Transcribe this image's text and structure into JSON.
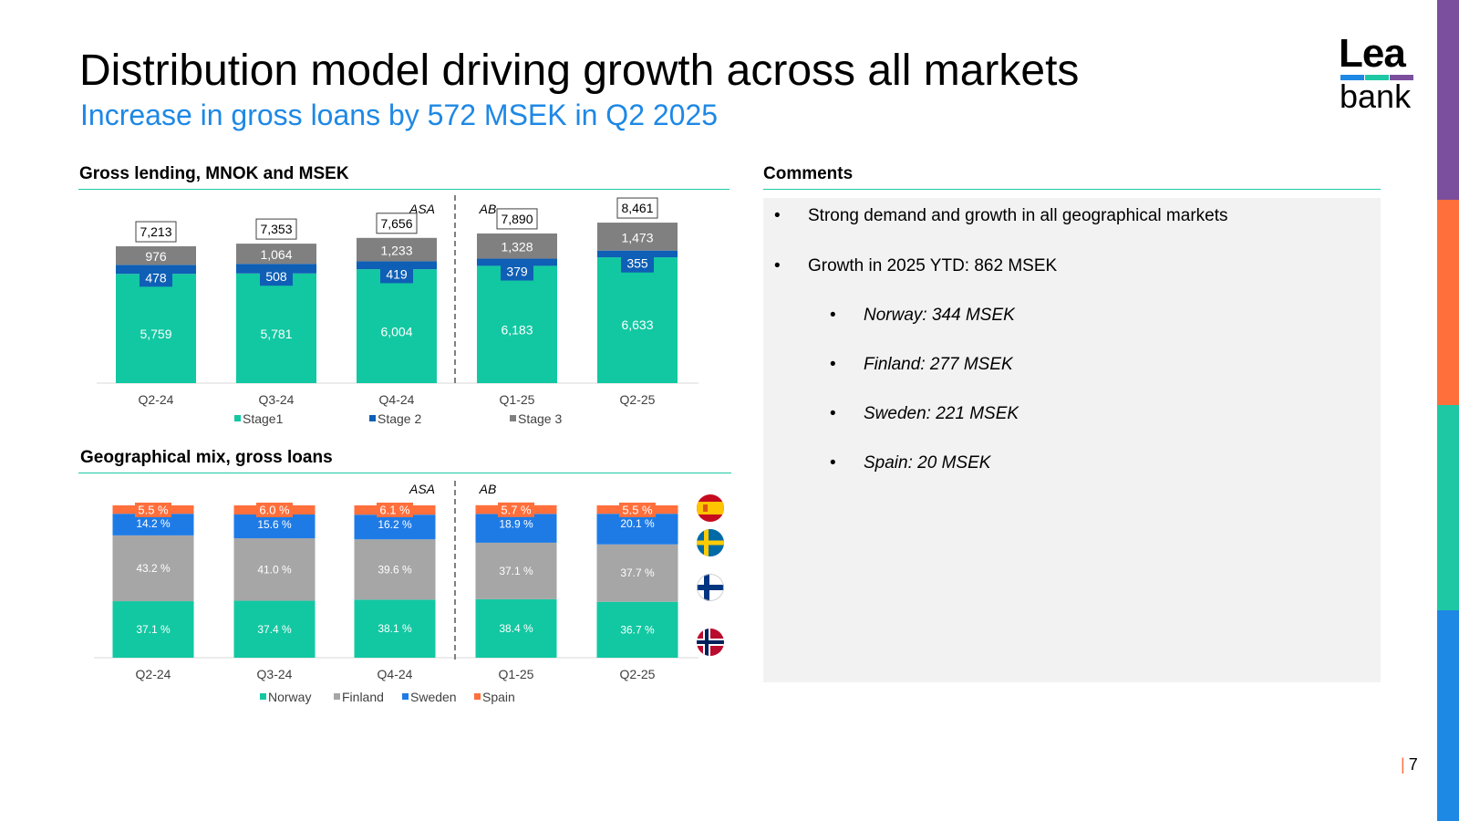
{
  "header": {
    "title": "Distribution model driving growth across all markets",
    "subtitle": "Increase in gross loans by 572 MSEK in Q2 2025"
  },
  "logo": {
    "top": "Lea",
    "bottom": "bank",
    "bar_colors": [
      "#1e88e5",
      "#1ec8a5",
      "#7b4f9d"
    ]
  },
  "stripe_colors": [
    "#7b4f9d",
    "#ff6f3c",
    "#1ec8a5",
    "#1e88e5"
  ],
  "chart_data": [
    {
      "type": "bar",
      "stacked": true,
      "title": "Gross lending, MNOK and MSEK",
      "categories": [
        "Q2-24",
        "Q3-24",
        "Q4-24",
        "Q1-25",
        "Q2-25"
      ],
      "series": [
        {
          "name": "Stage1",
          "color": "#12c8a2",
          "values": [
            5759,
            5781,
            6004,
            6183,
            6633
          ],
          "labels": [
            "5,759",
            "5,781",
            "6,004",
            "6,183",
            "6,633"
          ]
        },
        {
          "name": "Stage 2",
          "color": "#0e5fb5",
          "values": [
            478,
            508,
            419,
            379,
            355
          ],
          "labels": [
            "478",
            "508",
            "419",
            "379",
            "355"
          ]
        },
        {
          "name": "Stage 3",
          "color": "#808080",
          "values": [
            976,
            1064,
            1233,
            1328,
            1473
          ],
          "labels": [
            "976",
            "1,064",
            "1,233",
            "1,328",
            "1,473"
          ]
        }
      ],
      "totals": [
        "7,213",
        "7,353",
        "7,656",
        "7,890",
        "8,461"
      ],
      "divider_labels": [
        "ASA",
        "AB"
      ],
      "ylim": [
        0,
        9000
      ],
      "legend": "bottom"
    },
    {
      "type": "bar",
      "stacked": true,
      "title": "Geographical mix, gross loans",
      "categories": [
        "Q2-24",
        "Q3-24",
        "Q4-24",
        "Q1-25",
        "Q2-25"
      ],
      "series": [
        {
          "name": "Norway",
          "color": "#12c8a2",
          "values": [
            37.1,
            37.4,
            38.1,
            38.4,
            36.7
          ],
          "labels": [
            "37.1 %",
            "37.4 %",
            "38.1 %",
            "38.4 %",
            "36.7 %"
          ]
        },
        {
          "name": "Finland",
          "color": "#a6a6a6",
          "values": [
            43.2,
            41.0,
            39.6,
            37.1,
            37.7
          ],
          "labels": [
            "43.2 %",
            "41.0 %",
            "39.6 %",
            "37.1 %",
            "37.7 %"
          ]
        },
        {
          "name": "Sweden",
          "color": "#1e7be6",
          "values": [
            14.2,
            15.6,
            16.2,
            18.9,
            20.1
          ],
          "labels": [
            "14.2 %",
            "15.6 %",
            "16.2 %",
            "18.9 %",
            "20.1 %"
          ]
        },
        {
          "name": "Spain",
          "color": "#ff6f3c",
          "values": [
            5.5,
            6.0,
            6.1,
            5.7,
            5.5
          ],
          "labels": [
            "5.5 %",
            "6.0 %",
            "6.1 %",
            "5.7 %",
            "5.5 %"
          ]
        }
      ],
      "divider_labels": [
        "ASA",
        "AB"
      ],
      "ylim": [
        0,
        100
      ],
      "legend": "bottom",
      "flags": [
        "spain-flag-icon",
        "sweden-flag-icon",
        "finland-flag-icon",
        "norway-flag-icon"
      ]
    }
  ],
  "comments": {
    "title": "Comments",
    "bullet_char": "•",
    "items": [
      {
        "text": "Strong demand and growth in all geographical markets",
        "level": 0
      },
      {
        "text": "Growth in 2025 YTD: 862 MSEK",
        "level": 0
      },
      {
        "text": "Norway: 344 MSEK",
        "level": 1
      },
      {
        "text": "Finland: 277 MSEK",
        "level": 1
      },
      {
        "text": "Sweden: 221 MSEK",
        "level": 1
      },
      {
        "text": "Spain: 20 MSEK",
        "level": 1
      }
    ]
  },
  "footer": {
    "page_sep": "|",
    "page_number": "7"
  }
}
